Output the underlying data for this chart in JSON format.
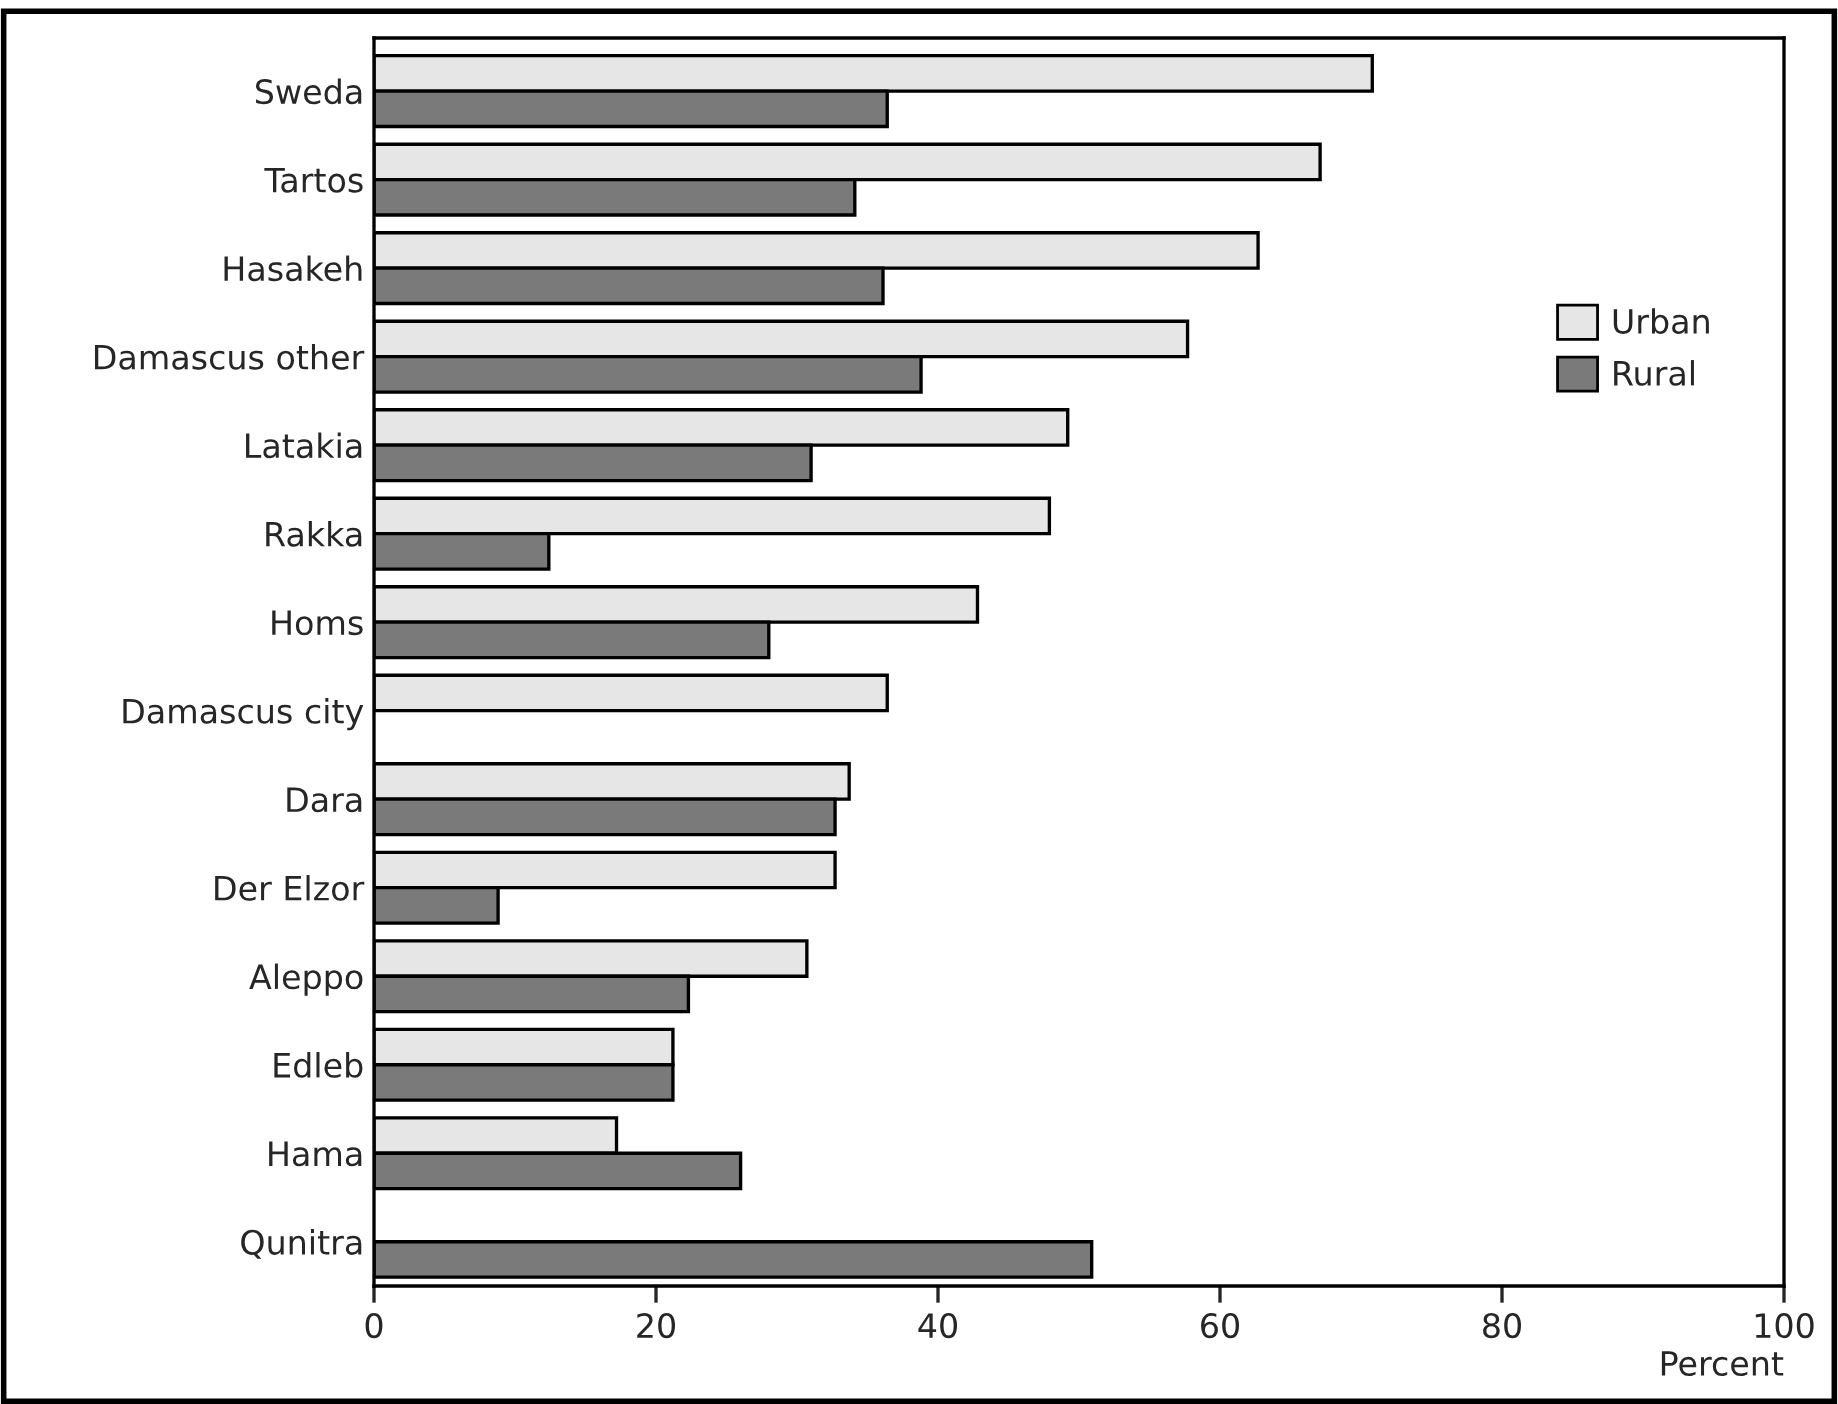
{
  "chart_data": {
    "type": "bar",
    "orientation": "horizontal",
    "xlabel": "Percent",
    "categories": [
      "Sweda",
      "Tartos",
      "Hasakeh",
      "Damascus other",
      "Latakia",
      "Rakka",
      "Homs",
      "Damascus city",
      "Dara",
      "Der Elzor",
      "Aleppo",
      "Edleb",
      "Hama",
      "Qunitra"
    ],
    "series": [
      {
        "name": "Urban",
        "color": "#e6e6e6",
        "values": [
          70.8,
          67.1,
          62.7,
          57.7,
          49.2,
          47.9,
          42.8,
          36.4,
          33.7,
          32.7,
          30.7,
          21.2,
          17.2,
          null
        ]
      },
      {
        "name": "Rural",
        "color": "#7a7a7a",
        "values": [
          36.4,
          34.1,
          36.1,
          38.8,
          31.0,
          12.4,
          28.0,
          null,
          32.7,
          8.8,
          22.3,
          21.2,
          26.0,
          50.9
        ]
      }
    ],
    "xlim": [
      0,
      100
    ],
    "xticks": [
      0,
      20,
      40,
      60,
      80,
      100
    ],
    "grid": false,
    "legend": "top right"
  }
}
